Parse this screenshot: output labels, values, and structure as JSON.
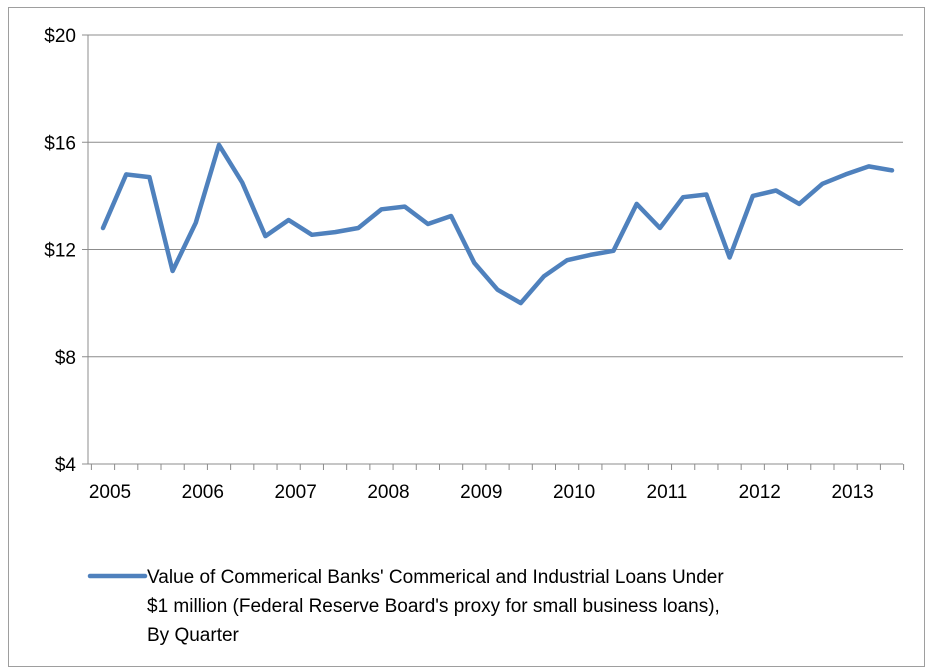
{
  "chart_data": {
    "type": "line",
    "title": "",
    "xlabel": "",
    "ylabel": "",
    "ylim": [
      4,
      20
    ],
    "y_ticks": [
      4,
      8,
      12,
      16,
      20
    ],
    "y_tick_labels": [
      "$4",
      "$8",
      "$12",
      "$16",
      "$20"
    ],
    "x_tick_labels": [
      "2005",
      "2006",
      "2007",
      "2008",
      "2009",
      "2010",
      "2011",
      "2012",
      "2013"
    ],
    "grid": true,
    "legend_position": "bottom",
    "series": [
      {
        "name": "Value of Commerical Banks' Commerical and Industrial Loans Under $1 million (Federal Reserve Board's proxy for small business loans), By Quarter",
        "legend_lines": [
          "Value of Commerical Banks' Commerical and Industrial Loans Under",
          "$1 million (Federal Reserve Board's proxy for small business loans),",
          "By Quarter"
        ],
        "color": "#4f81bd",
        "values": [
          12.8,
          14.8,
          14.7,
          11.2,
          13.0,
          15.9,
          14.5,
          12.5,
          13.1,
          12.55,
          12.65,
          12.8,
          13.5,
          13.6,
          12.95,
          13.25,
          11.5,
          10.5,
          10.0,
          11.0,
          11.6,
          11.8,
          11.95,
          13.7,
          12.8,
          13.95,
          14.05,
          11.7,
          14.0,
          14.2,
          13.7,
          14.45,
          14.8,
          15.1,
          14.95
        ]
      }
    ]
  }
}
